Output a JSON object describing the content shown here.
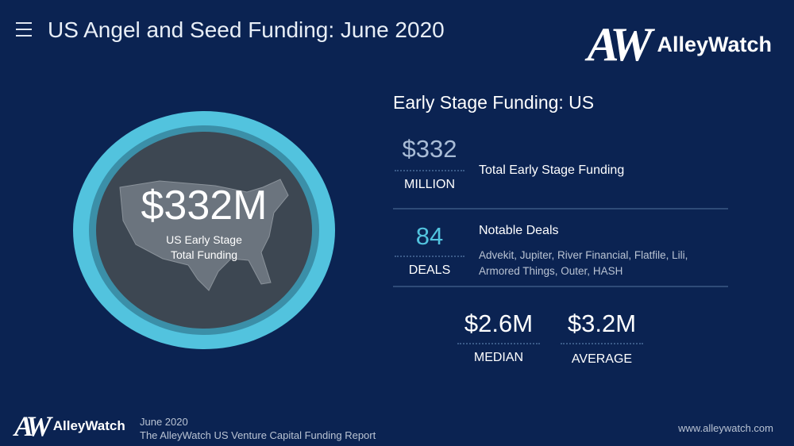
{
  "header": {
    "title": "US Angel and Seed Funding: June 2020",
    "logo_text": "AlleyWatch",
    "logo_mark": "AW",
    "menu_icon": "hamburger-icon"
  },
  "circle": {
    "amount": "$332M",
    "caption_line1": "US Early Stage",
    "caption_line2": "Total Funding",
    "ring_color": "#52c3de"
  },
  "panel": {
    "heading": "Early Stage Funding: US",
    "total": {
      "value": "$332",
      "unit": "MILLION",
      "label": "Total Early Stage Funding"
    },
    "deals": {
      "value": "84",
      "unit": "DEALS",
      "label": "Notable Deals",
      "list_line1": "Advekit, Jupiter, River Financial, Flatfile, Lili,",
      "list_line2": "Armored Things, Outer, HASH",
      "accent": "#52c3de"
    },
    "median": {
      "value": "$2.6M",
      "unit": "MEDIAN"
    },
    "average": {
      "value": "$3.2M",
      "unit": "AVERAGE"
    }
  },
  "footer": {
    "logo_text": "AlleyWatch",
    "logo_mark": "AW",
    "date": "June 2020",
    "report": "The AlleyWatch US Venture Capital Funding Report",
    "url": "www.alleywatch.com"
  }
}
